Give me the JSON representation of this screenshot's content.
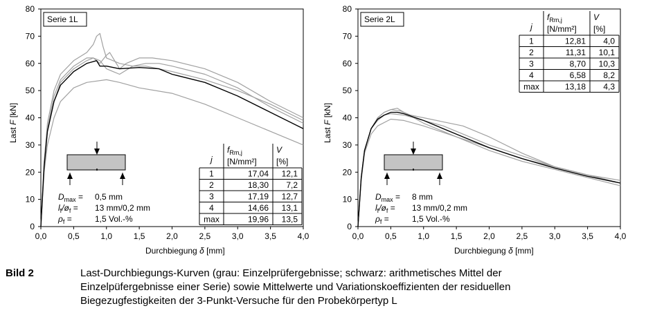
{
  "charts": [
    {
      "id": "left",
      "series_box_label": "Serie 1L",
      "table": {
        "col_j": "j",
        "col_f": "f",
        "col_f_sub": "Rm,j",
        "col_f_unit": "[N/mm²]",
        "col_v": "V",
        "col_v_unit": "[%]",
        "rows": [
          {
            "j": "1",
            "f": "17,04",
            "v": "12,1"
          },
          {
            "j": "2",
            "f": "18,30",
            "v": "7,2"
          },
          {
            "j": "3",
            "f": "17,19",
            "v": "12,7"
          },
          {
            "j": "4",
            "f": "14,66",
            "v": "13,1"
          },
          {
            "j": "max",
            "f": "19,96",
            "v": "13,5"
          }
        ]
      },
      "params": [
        {
          "sym": "D",
          "sub": "max",
          "val": "0,5 mm"
        },
        {
          "sym": "l",
          "sub": "f",
          "sym2": "/ø",
          "sub2": "f",
          "val": "13 mm/0,2 mm"
        },
        {
          "sym": "ρ",
          "sub": "f",
          "val": "1,5 Vol.-%"
        }
      ]
    },
    {
      "id": "right",
      "series_box_label": "Serie 2L",
      "table": {
        "col_j": "j",
        "col_f": "f",
        "col_f_sub": "Rm,j",
        "col_f_unit": "[N/mm²]",
        "col_v": "V",
        "col_v_unit": "[%]",
        "rows": [
          {
            "j": "1",
            "f": "12,81",
            "v": "4,0"
          },
          {
            "j": "2",
            "f": "11,31",
            "v": "10,1"
          },
          {
            "j": "3",
            "f": "8,70",
            "v": "10,3"
          },
          {
            "j": "4",
            "f": "6,58",
            "v": "8,2"
          },
          {
            "j": "max",
            "f": "13,18",
            "v": "4,3"
          }
        ]
      },
      "params": [
        {
          "sym": "D",
          "sub": "max",
          "val": "8 mm"
        },
        {
          "sym": "l",
          "sub": "f",
          "sym2": "/ø",
          "sub2": "f",
          "val": "13 mm/0,2 mm"
        },
        {
          "sym": "ρ",
          "sub": "f",
          "val": "1,5 Vol.-%"
        }
      ]
    }
  ],
  "axis_text": {
    "xlabel": "Durchbiegung",
    "xlabel_sym": "δ",
    "xlabel_unit": "[mm]",
    "ylabel": "Last",
    "ylabel_sym": "F",
    "ylabel_unit": "[kN]"
  },
  "chart_data": [
    {
      "type": "line",
      "xlim": [
        0,
        4
      ],
      "ylim": [
        0,
        80
      ],
      "x_ticks": [
        "0,0",
        "0,5",
        "1,0",
        "1,5",
        "2,0",
        "2,5",
        "3,0",
        "3,5",
        "4,0"
      ],
      "y_ticks": [
        "0",
        "10",
        "20",
        "30",
        "40",
        "50",
        "60",
        "70",
        "80"
      ],
      "grid": false,
      "colors": {
        "specimen": "#a0a0a0",
        "mean": "#000000"
      },
      "series": [
        {
          "role": "specimen",
          "points": [
            [
              0,
              0
            ],
            [
              0.05,
              24
            ],
            [
              0.1,
              38
            ],
            [
              0.2,
              50
            ],
            [
              0.3,
              56
            ],
            [
              0.5,
              61
            ],
            [
              0.7,
              64
            ],
            [
              0.8,
              67
            ],
            [
              0.85,
              70
            ],
            [
              0.9,
              71
            ],
            [
              0.95,
              66
            ],
            [
              1.0,
              62
            ],
            [
              1.1,
              61
            ],
            [
              1.2,
              60
            ],
            [
              1.4,
              59
            ],
            [
              1.6,
              59
            ],
            [
              1.8,
              58
            ],
            [
              2.0,
              57
            ],
            [
              2.5,
              54
            ],
            [
              3.0,
              50
            ],
            [
              3.5,
              45
            ],
            [
              4.0,
              39
            ]
          ]
        },
        {
          "role": "specimen",
          "points": [
            [
              0,
              0
            ],
            [
              0.05,
              23
            ],
            [
              0.1,
              36
            ],
            [
              0.2,
              48
            ],
            [
              0.3,
              54
            ],
            [
              0.5,
              59
            ],
            [
              0.7,
              62
            ],
            [
              0.8,
              62
            ],
            [
              0.9,
              60
            ],
            [
              1.0,
              63
            ],
            [
              1.05,
              64
            ],
            [
              1.1,
              62
            ],
            [
              1.2,
              58
            ],
            [
              1.3,
              60
            ],
            [
              1.5,
              62
            ],
            [
              1.7,
              62
            ],
            [
              2.0,
              61
            ],
            [
              2.5,
              58
            ],
            [
              3.0,
              53
            ],
            [
              3.5,
              46
            ],
            [
              4.0,
              40
            ]
          ]
        },
        {
          "role": "specimen",
          "points": [
            [
              0,
              0
            ],
            [
              0.05,
              22
            ],
            [
              0.1,
              35
            ],
            [
              0.2,
              46
            ],
            [
              0.3,
              53
            ],
            [
              0.5,
              58
            ],
            [
              0.7,
              61
            ],
            [
              0.8,
              62
            ],
            [
              0.9,
              61
            ],
            [
              1.0,
              58
            ],
            [
              1.1,
              57
            ],
            [
              1.2,
              56
            ],
            [
              1.4,
              59
            ],
            [
              1.6,
              60
            ],
            [
              1.8,
              60
            ],
            [
              2.0,
              59
            ],
            [
              2.5,
              56
            ],
            [
              3.0,
              51
            ],
            [
              3.5,
              44
            ],
            [
              4.0,
              38
            ]
          ]
        },
        {
          "role": "specimen",
          "points": [
            [
              0,
              0
            ],
            [
              0.05,
              20
            ],
            [
              0.1,
              30
            ],
            [
              0.2,
              40
            ],
            [
              0.3,
              46
            ],
            [
              0.5,
              51
            ],
            [
              0.7,
              53
            ],
            [
              1.0,
              54
            ],
            [
              1.2,
              53
            ],
            [
              1.5,
              51
            ],
            [
              2.0,
              49
            ],
            [
              2.5,
              45
            ],
            [
              3.0,
              40
            ],
            [
              3.5,
              35
            ],
            [
              4.0,
              30
            ]
          ]
        },
        {
          "role": "mean",
          "points": [
            [
              0,
              0
            ],
            [
              0.05,
              22
            ],
            [
              0.1,
              35
            ],
            [
              0.2,
              46
            ],
            [
              0.3,
              52
            ],
            [
              0.5,
              57
            ],
            [
              0.7,
              60
            ],
            [
              0.85,
              61
            ],
            [
              0.9,
              59
            ],
            [
              1.0,
              59
            ],
            [
              1.2,
              58
            ],
            [
              1.5,
              58.5
            ],
            [
              1.8,
              58
            ],
            [
              2.0,
              56
            ],
            [
              2.5,
              53
            ],
            [
              3.0,
              48
            ],
            [
              3.5,
              42
            ],
            [
              4.0,
              36
            ]
          ]
        }
      ]
    },
    {
      "type": "line",
      "xlim": [
        0,
        4
      ],
      "ylim": [
        0,
        80
      ],
      "x_ticks": [
        "0,0",
        "0,5",
        "1,0",
        "1,5",
        "2,0",
        "2,5",
        "3,0",
        "3,5",
        "4,0"
      ],
      "y_ticks": [
        "0",
        "10",
        "20",
        "30",
        "40",
        "50",
        "60",
        "70",
        "80"
      ],
      "grid": false,
      "colors": {
        "specimen": "#a0a0a0",
        "mean": "#000000"
      },
      "series": [
        {
          "role": "specimen",
          "points": [
            [
              0,
              0
            ],
            [
              0.05,
              18
            ],
            [
              0.1,
              28
            ],
            [
              0.2,
              36
            ],
            [
              0.3,
              40
            ],
            [
              0.4,
              42
            ],
            [
              0.5,
              43
            ],
            [
              0.6,
              43.5
            ],
            [
              0.7,
              42
            ],
            [
              1.0,
              38
            ],
            [
              1.5,
              33
            ],
            [
              2.0,
              29
            ],
            [
              2.5,
              25
            ],
            [
              3.0,
              22
            ],
            [
              3.5,
              19
            ],
            [
              4.0,
              17
            ]
          ]
        },
        {
          "role": "specimen",
          "points": [
            [
              0,
              0
            ],
            [
              0.05,
              18
            ],
            [
              0.1,
              28
            ],
            [
              0.2,
              36
            ],
            [
              0.3,
              39
            ],
            [
              0.4,
              41
            ],
            [
              0.5,
              41.5
            ],
            [
              0.7,
              41
            ],
            [
              1.0,
              39
            ],
            [
              1.3,
              37
            ],
            [
              1.6,
              34
            ],
            [
              2.0,
              30
            ],
            [
              2.5,
              26
            ],
            [
              3.0,
              22
            ],
            [
              3.5,
              19
            ],
            [
              4.0,
              16
            ]
          ]
        },
        {
          "role": "specimen",
          "points": [
            [
              0,
              0
            ],
            [
              0.05,
              17
            ],
            [
              0.1,
              27
            ],
            [
              0.2,
              34
            ],
            [
              0.3,
              37
            ],
            [
              0.5,
              39.5
            ],
            [
              0.7,
              39
            ],
            [
              1.0,
              37
            ],
            [
              1.5,
              33
            ],
            [
              2.0,
              28
            ],
            [
              2.5,
              24
            ],
            [
              3.0,
              21
            ],
            [
              3.5,
              18
            ],
            [
              4.0,
              15
            ]
          ]
        },
        {
          "role": "specimen",
          "points": [
            [
              0,
              0
            ],
            [
              0.05,
              18
            ],
            [
              0.1,
              28
            ],
            [
              0.2,
              36
            ],
            [
              0.3,
              40
            ],
            [
              0.4,
              42
            ],
            [
              0.5,
              43
            ],
            [
              0.65,
              42.5
            ],
            [
              0.8,
              41
            ],
            [
              1.0,
              40
            ],
            [
              1.3,
              38.5
            ],
            [
              1.6,
              37
            ],
            [
              2.0,
              33
            ],
            [
              2.5,
              27
            ],
            [
              3.0,
              22
            ],
            [
              3.5,
              19
            ],
            [
              4.0,
              16
            ]
          ]
        },
        {
          "role": "mean",
          "points": [
            [
              0,
              0
            ],
            [
              0.05,
              18
            ],
            [
              0.1,
              28
            ],
            [
              0.2,
              36
            ],
            [
              0.3,
              39.5
            ],
            [
              0.4,
              41
            ],
            [
              0.5,
              42
            ],
            [
              0.6,
              42
            ],
            [
              0.7,
              41.5
            ],
            [
              1.0,
              39
            ],
            [
              1.3,
              36
            ],
            [
              1.6,
              33
            ],
            [
              2.0,
              29
            ],
            [
              2.5,
              25
            ],
            [
              3.0,
              21.5
            ],
            [
              3.5,
              18.5
            ],
            [
              4.0,
              16
            ]
          ]
        }
      ]
    }
  ],
  "caption": {
    "label": "Bild 2",
    "lines": [
      "Last-Durchbiegungs-Kurven (grau: Einzelprüfergebnisse; schwarz: arithmetisches Mittel der",
      "Einzelpüfergebnisse einer Serie) sowie Mittelwerte und Variationskoeffizienten der residuellen",
      "Biegezugfestigkeiten der 3-Punkt-Versuche für den Probekörpertyp L"
    ]
  }
}
